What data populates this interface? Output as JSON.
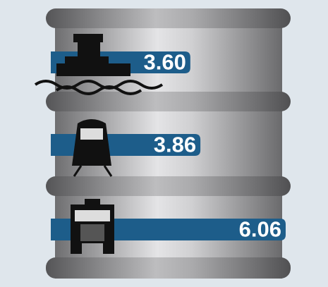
{
  "chart_data": {
    "type": "bar",
    "orientation": "horizontal",
    "values": [
      3.6,
      3.86,
      6.06
    ],
    "value_labels": [
      "3.60",
      "3.86",
      "6.06"
    ],
    "color": "#1d5d8a"
  }
}
